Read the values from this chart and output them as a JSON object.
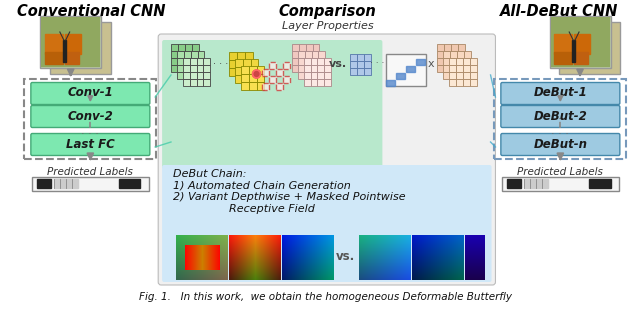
{
  "title_left": "Conventional CNN",
  "title_center": "Comparison",
  "title_right": "All-DeBut CNN",
  "subtitle_center": "Layer Properties",
  "left_blocks": [
    "Conv-1",
    "Conv-2",
    "Last FC"
  ],
  "right_blocks": [
    "DeBut-1",
    "DeBut-2",
    "DeBut-n"
  ],
  "debut_chain_text": "DeBut Chain:\n1) Automated Chain Generation\n2) Variant Depthwise + Masked Pointwise\n                Receptive Field",
  "label_left": "Predicted Labels",
  "label_right": "Predicted Labels",
  "vs_text": "vs.",
  "bg_color": "#ffffff",
  "block_color_left": "#7de8b0",
  "block_color_right": "#9ecae1",
  "comp_top_bg": "#c8edd8",
  "comp_bot_bg": "#d8eaf8",
  "caption": "Fig. 1.   In this work,  we obtain the homogeneous Deformable Butterfly"
}
